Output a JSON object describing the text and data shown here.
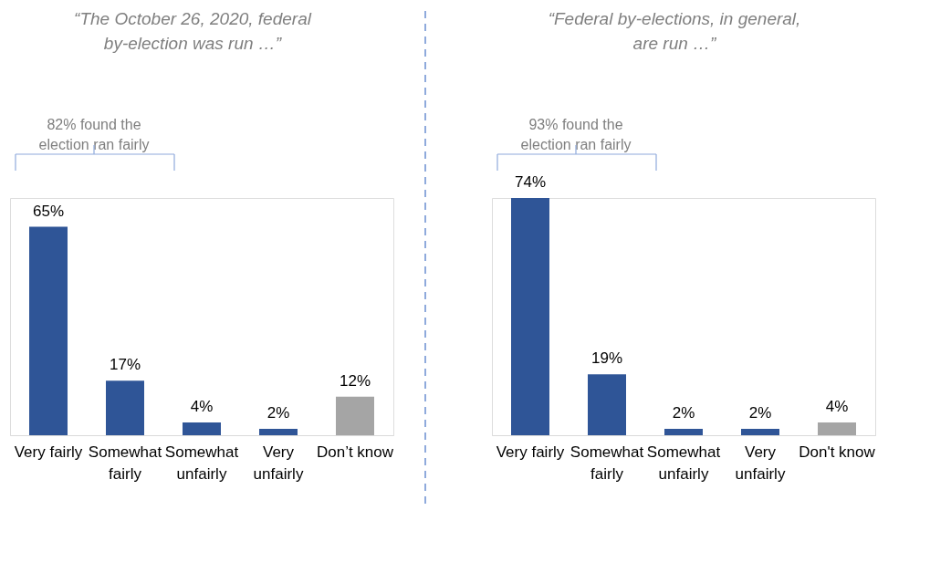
{
  "chart_data": [
    {
      "type": "bar",
      "title": "“The October 26, 2020, federal\nby-election was run …”",
      "categories": [
        "Very fairly",
        "Somewhat\nfairly",
        "Somewhat\nunfairly",
        "Very\nunfairly",
        "Don’t know"
      ],
      "values": [
        65,
        17,
        4,
        2,
        12
      ],
      "colors": [
        "#2f5597",
        "#2f5597",
        "#2f5597",
        "#2f5597",
        "#a5a5a5"
      ],
      "data_labels": true,
      "value_labels": [
        "65%",
        "17%",
        "4%",
        "2%",
        "12%"
      ],
      "annotations": [
        "82% found the\nelection ran fairly"
      ]
    },
    {
      "type": "bar",
      "title": "“Federal by-elections, in general,\nare run …”",
      "categories": [
        "Very fairly",
        "Somewhat\nfairly",
        "Somewhat\nunfairly",
        "Very\nunfairly",
        "Don't know"
      ],
      "values": [
        74,
        19,
        2,
        2,
        4
      ],
      "colors": [
        "#2f5597",
        "#2f5597",
        "#2f5597",
        "#2f5597",
        "#a5a5a5"
      ],
      "data_labels": true,
      "value_labels": [
        "74%",
        "19%",
        "2%",
        "2%",
        "4%"
      ],
      "annotations": [
        "93% found the\nelection ran fairly"
      ]
    }
  ]
}
